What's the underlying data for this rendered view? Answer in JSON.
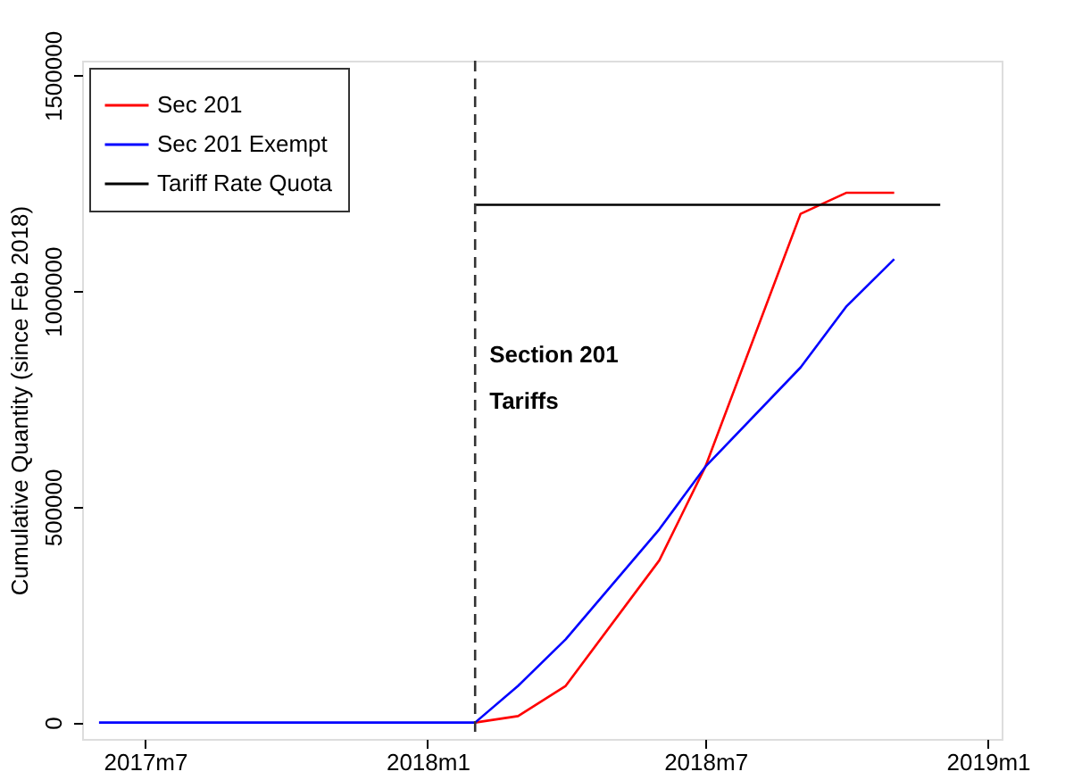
{
  "chart_data": {
    "type": "line",
    "ylabel": "Cumulative Quantity (since Feb 2018)",
    "series": [
      {
        "name": "Sec 201",
        "color": "#ff0000",
        "x": [
          "2018-02",
          "2018-03",
          "2018-04",
          "2018-06",
          "2018-07",
          "2018-09",
          "2018-10",
          "2018-11"
        ],
        "values": [
          0,
          15000,
          85000,
          376000,
          593000,
          1179000,
          1228000,
          1228000
        ]
      },
      {
        "name": "Sec 201 Exempt",
        "color": "#0000ff",
        "x": [
          "2017-06",
          "2018-02",
          "2018-03",
          "2018-04",
          "2018-06",
          "2018-07",
          "2018-09",
          "2018-10",
          "2018-11"
        ],
        "values": [
          0,
          0,
          85000,
          193000,
          448000,
          593000,
          823000,
          965000,
          1074000
        ]
      },
      {
        "name": "Tariff Rate Quota",
        "color": "#000000",
        "x": [
          "2018-02",
          "2018-12"
        ],
        "values": [
          1200000,
          1200000
        ]
      }
    ],
    "xlim": [
      "2017-05-21",
      "2019-01-10"
    ],
    "xticks": [
      {
        "value": "2017-07",
        "label": "2017m7"
      },
      {
        "value": "2018-01",
        "label": "2018m1"
      },
      {
        "value": "2018-07",
        "label": "2018m7"
      },
      {
        "value": "2019-01",
        "label": "2019m1"
      }
    ],
    "ylim": [
      -38000,
      1534000
    ],
    "yticks": [
      0,
      500000,
      1000000,
      1500000
    ],
    "ref_lines": [
      {
        "axis": "x",
        "value": "2018-02",
        "label": "Section 201\nTariffs",
        "color": "#333333",
        "line_style": "dashed"
      }
    ],
    "grid": false,
    "legend": "top left",
    "marker": "none",
    "line_style": "solid"
  }
}
